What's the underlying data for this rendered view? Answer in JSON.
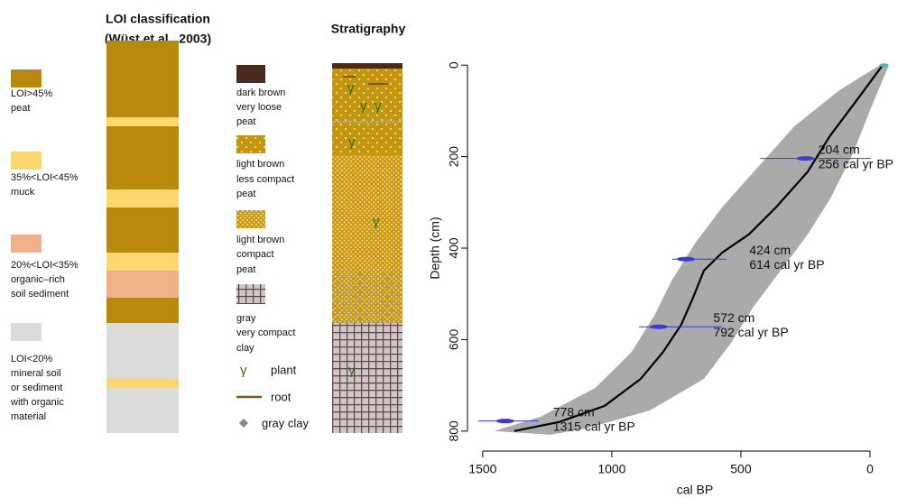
{
  "loi": {
    "title": "LOI classification",
    "subtitle": "(Wüst et al., 2003)",
    "legend": [
      {
        "lines": [
          "LOI>45%",
          "peat"
        ]
      },
      {
        "lines": [
          "35%<LOI<45%",
          "muck"
        ]
      },
      {
        "lines": [
          "20%<LOI<35%",
          "organic–rich",
          "soil sediment"
        ]
      },
      {
        "lines": [
          "LOI<20%",
          "mineral soil",
          "or sediment",
          "with organic",
          "material"
        ]
      }
    ]
  },
  "stratigraphy": {
    "title": "Stratigraphy",
    "legend": [
      {
        "lines": [
          "dark brown",
          "very loose",
          "peat"
        ]
      },
      {
        "lines": [
          "light brown",
          "less compact",
          "peat"
        ]
      },
      {
        "lines": [
          "light brown",
          "compact",
          "peat"
        ]
      },
      {
        "lines": [
          "gray",
          "very compact",
          "clay"
        ]
      }
    ],
    "symbols": [
      {
        "symbol": "γ",
        "label": "plant"
      },
      {
        "label": "root"
      },
      {
        "label": "gray clay"
      }
    ]
  },
  "chart_data": {
    "type": "age-depth",
    "xlabel": "cal BP",
    "ylabel": "Depth (cm)",
    "xlim": [
      1552,
      -91
    ],
    "ylim": [
      824,
      -30
    ],
    "xticks": [
      1500,
      1000,
      500,
      0
    ],
    "yticks": [
      0,
      200,
      400,
      600,
      800
    ],
    "range": {
      "color": "#aaaaaa",
      "x": [
        -38,
        119,
        294,
        434,
        573,
        678,
        766,
        836,
        923,
        1063,
        1273,
        1455,
        1238,
        1098,
        853,
        643,
        538,
        451,
        346,
        241,
        154,
        66,
        -3,
        -73
      ],
      "y": [
        0,
        55,
        134,
        223,
        311,
        390,
        469,
        548,
        627,
        705,
        768,
        800,
        808,
        794,
        755,
        686,
        607,
        528,
        449,
        370,
        292,
        193,
        95,
        0
      ]
    },
    "median": {
      "color": "#000000",
      "x": [
        -49,
        49,
        154,
        241,
        364,
        469,
        573,
        643,
        685,
        731,
        801,
        888,
        1028,
        1203,
        1378
      ],
      "y": [
        0,
        75,
        154,
        233,
        311,
        370,
        410,
        449,
        508,
        567,
        627,
        686,
        745,
        780,
        800
      ]
    },
    "surface": {
      "color": "#40c0c0",
      "x": -55,
      "y": 0
    },
    "dates": {
      "color": "#3a3ad6",
      "depth": [
        204,
        424,
        572,
        778
      ],
      "age": [
        256,
        614,
        792,
        1315
      ],
      "min": [
        -3,
        556,
        573,
        1283
      ],
      "max": [
        425,
        766,
        895,
        1517
      ],
      "peak": [
        250,
        713,
        818,
        1413
      ],
      "depth_labels": [
        "204 cm",
        "424 cm",
        "572 cm",
        "778 cm"
      ],
      "age_labels": [
        "256 cal yr BP",
        "614 cal yr BP",
        "792 cal yr BP",
        "1315 cal yr BP"
      ]
    }
  }
}
